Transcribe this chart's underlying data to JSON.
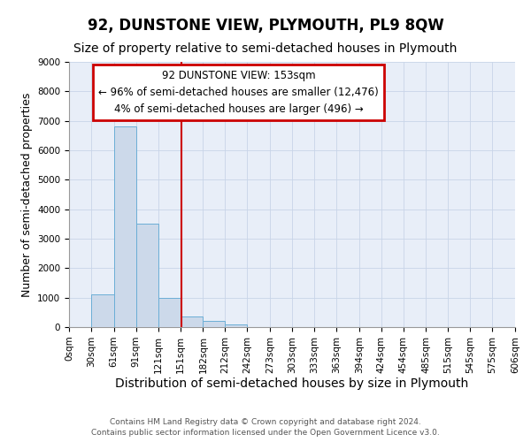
{
  "title": "92, DUNSTONE VIEW, PLYMOUTH, PL9 8QW",
  "subtitle": "Size of property relative to semi-detached houses in Plymouth",
  "xlabel": "Distribution of semi-detached houses by size in Plymouth",
  "ylabel": "Number of semi-detached properties",
  "footnote1": "Contains HM Land Registry data © Crown copyright and database right 2024.",
  "footnote2": "Contains public sector information licensed under the Open Government Licence v3.0.",
  "annotation_title": "92 DUNSTONE VIEW: 153sqm",
  "annotation_line1": "← 96% of semi-detached houses are smaller (12,476)",
  "annotation_line2": "4% of semi-detached houses are larger (496) →",
  "property_size": 153,
  "bin_edges": [
    0,
    30,
    61,
    91,
    121,
    151,
    182,
    212,
    242,
    273,
    303,
    333,
    363,
    394,
    424,
    454,
    485,
    515,
    545,
    575,
    606
  ],
  "bar_heights": [
    0,
    1100,
    6800,
    3500,
    1000,
    350,
    200,
    100,
    0,
    0,
    0,
    0,
    0,
    0,
    0,
    0,
    0,
    0,
    0,
    0
  ],
  "bar_color": "#ccd9ea",
  "bar_edge_color": "#6baed6",
  "vline_color": "#cc0000",
  "annotation_box_edge_color": "#cc0000",
  "ylim": [
    0,
    9000
  ],
  "yticks": [
    0,
    1000,
    2000,
    3000,
    4000,
    5000,
    6000,
    7000,
    8000,
    9000
  ],
  "grid_color": "#c8d4e8",
  "bg_color": "#e8eef8",
  "title_fontsize": 12,
  "subtitle_fontsize": 10,
  "tick_fontsize": 7.5,
  "ylabel_fontsize": 9,
  "xlabel_fontsize": 10,
  "footnote_fontsize": 6.5
}
